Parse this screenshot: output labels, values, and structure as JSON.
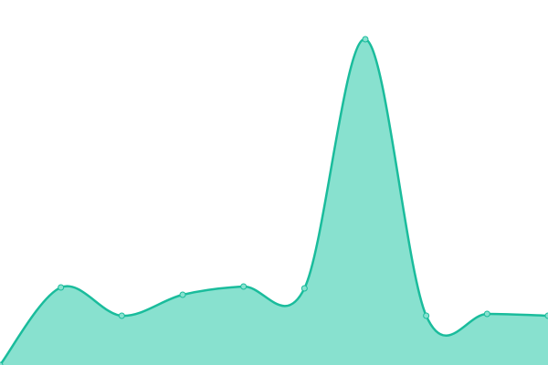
{
  "chart_data": {
    "type": "area",
    "values": [
      0,
      85,
      54,
      77,
      86,
      84,
      357,
      54,
      56,
      54
    ],
    "ylim": [
      0,
      400
    ],
    "color": "#1abc9c",
    "fill": "#88e1cf",
    "marker_fill": "#88e1cf"
  }
}
